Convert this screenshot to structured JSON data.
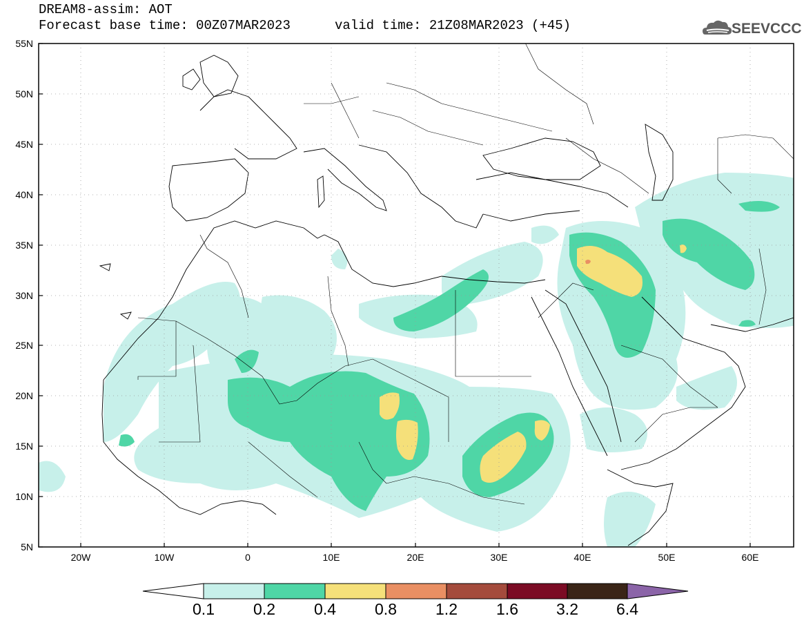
{
  "header": {
    "line1": "DREAM8-assim: AOT",
    "line2": "Forecast base time: 00Z07MAR2023",
    "valid": "valid time: 21Z08MAR2023 (+45)"
  },
  "logo": {
    "text": "SEEVCCC",
    "icon": "cloud-icon"
  },
  "map_data": {
    "type": "filled-contour-map",
    "variable": "AOT",
    "lon_range": [
      -25,
      65
    ],
    "lat_range": [
      5,
      55
    ],
    "x_ticks": [
      "20W",
      "10W",
      "0",
      "10E",
      "20E",
      "30E",
      "40E",
      "50E",
      "60E"
    ],
    "y_ticks": [
      "55N",
      "50N",
      "45N",
      "40N",
      "35N",
      "30N",
      "25N",
      "20N",
      "15N",
      "10N",
      "5N"
    ],
    "grid": "dotted"
  },
  "colorbar": {
    "levels": [
      "0.1",
      "0.2",
      "0.4",
      "0.8",
      "1.2",
      "1.6",
      "3.2",
      "6.4"
    ],
    "colors": [
      "#c7f0ea",
      "#4fd6a6",
      "#f5e07a",
      "#e98f63",
      "#a44b3c",
      "#7b0b24",
      "#3a2417",
      "#8b64a8"
    ]
  }
}
